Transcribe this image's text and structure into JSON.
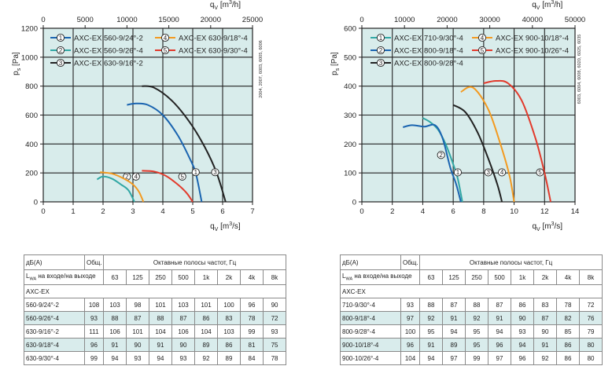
{
  "colors": {
    "plot_bg": "#d8eceb",
    "grid": "#222222",
    "table_alt_row": "#d9ecec",
    "series": {
      "blue": "#1a64b0",
      "teal": "#31a7a4",
      "black": "#222222",
      "orange": "#f39a20",
      "red": "#e23a2c"
    }
  },
  "chart_data": [
    {
      "type": "line",
      "y_axis_label": "p",
      "y_axis_label_sub": "s",
      "y_axis_unit": "[Pa]",
      "x_axis_label": "q",
      "x_axis_label_sub": "V",
      "x_axis_unit": "[m3/s]",
      "x_axis_unit_parts": [
        "[m",
        "3",
        "/s]"
      ],
      "x2_axis_unit_parts": [
        "[m",
        "3",
        "/h]"
      ],
      "xlim": [
        0,
        7
      ],
      "ylim": [
        0,
        1200
      ],
      "x_ticks": [
        "0",
        "1",
        "2",
        "3",
        "4",
        "5",
        "6",
        "7"
      ],
      "y_ticks": [
        "0",
        "200",
        "400",
        "600",
        "800",
        "1000",
        "1200"
      ],
      "x2_ticks": [
        "0",
        "5000",
        "10000",
        "15000",
        "20000",
        "25000"
      ],
      "side_note": "2004, 2007, 6003, 6005, 6006",
      "series": [
        {
          "marker": "1",
          "name": "AXC-EX 560-9/24°-2",
          "color": "blue",
          "x": [
            2.8,
            3.1,
            3.5,
            4.0,
            4.5,
            4.9,
            5.1,
            5.3
          ],
          "y": [
            670,
            680,
            670,
            600,
            460,
            300,
            200,
            0
          ],
          "marker_at": [
            5.1,
            205
          ]
        },
        {
          "marker": "2",
          "name": "AXC-EX 560-9/26°-4",
          "color": "teal",
          "x": [
            1.8,
            2.0,
            2.3,
            2.6,
            2.85,
            3.05
          ],
          "y": [
            155,
            175,
            160,
            120,
            80,
            0
          ],
          "marker_at": [
            2.8,
            175
          ]
        },
        {
          "marker": "3",
          "name": "AXC-EX 630-9/16°-2",
          "color": "black",
          "x": [
            3.3,
            3.7,
            4.3,
            4.9,
            5.4,
            5.8,
            6.1
          ],
          "y": [
            800,
            790,
            700,
            550,
            380,
            200,
            0
          ],
          "marker_at": [
            5.75,
            205
          ]
        },
        {
          "marker": "4",
          "name": "AXC-EX 630-9/18°-4",
          "color": "orange",
          "x": [
            1.9,
            2.3,
            2.7,
            3.0,
            3.2,
            3.35
          ],
          "y": [
            205,
            195,
            160,
            120,
            70,
            0
          ],
          "marker_at": [
            3.1,
            175
          ]
        },
        {
          "marker": "5",
          "name": "AXC-EX 630-9/30°-4",
          "color": "red",
          "x": [
            3.3,
            3.7,
            4.1,
            4.5,
            4.8,
            5.0
          ],
          "y": [
            215,
            210,
            180,
            120,
            60,
            0
          ],
          "marker_at": [
            4.65,
            175
          ]
        }
      ]
    },
    {
      "type": "line",
      "y_axis_label": "p",
      "y_axis_label_sub": "s",
      "y_axis_unit": "[Pa]",
      "x_axis_label": "q",
      "x_axis_label_sub": "V",
      "x_axis_unit": "[m3/s]",
      "x_axis_unit_parts": [
        "[m",
        "3",
        "/s]"
      ],
      "x2_axis_unit_parts": [
        "[m",
        "3",
        "/h]"
      ],
      "xlim": [
        0,
        14
      ],
      "ylim": [
        0,
        600
      ],
      "x_ticks": [
        "0",
        "2",
        "4",
        "6",
        "8",
        "10",
        "12",
        "14"
      ],
      "y_ticks": [
        "0",
        "100",
        "200",
        "300",
        "400",
        "500",
        "600"
      ],
      "x2_ticks": [
        "0",
        "10000",
        "20000",
        "30000",
        "40000",
        "50000"
      ],
      "side_note": "6003, 6004, 6008, 6020, 6025, 6035",
      "series": [
        {
          "marker": "1",
          "name": "AXC-EX 710-9/30°-4",
          "color": "teal",
          "x": [
            4.0,
            4.5,
            5.0,
            5.5,
            6.0,
            6.3,
            6.6
          ],
          "y": [
            290,
            275,
            250,
            200,
            130,
            80,
            0
          ],
          "marker_at": [
            6.3,
            102
          ]
        },
        {
          "marker": "2",
          "name": "AXC-EX 800-9/18°-4",
          "color": "blue",
          "x": [
            2.7,
            3.3,
            4.1,
            4.8,
            5.3,
            5.8,
            6.2,
            6.5
          ],
          "y": [
            258,
            265,
            260,
            265,
            220,
            120,
            60,
            0
          ],
          "marker_at": [
            5.2,
            162
          ]
        },
        {
          "marker": "3",
          "name": "AXC-EX 800-9/28°-4",
          "color": "black",
          "x": [
            6.0,
            6.8,
            7.6,
            8.3,
            8.9,
            9.2
          ],
          "y": [
            335,
            310,
            240,
            150,
            60,
            0
          ],
          "marker_at": [
            8.3,
            102
          ]
        },
        {
          "marker": "4",
          "name": "AXC-EX 900-10/18°-4",
          "color": "orange",
          "x": [
            6.5,
            7.3,
            8.3,
            9.1,
            9.7,
            10.0
          ],
          "y": [
            380,
            395,
            320,
            200,
            90,
            0
          ],
          "marker_at": [
            9.2,
            102
          ]
        },
        {
          "marker": "5",
          "name": "AXC-EX 900-10/26°-4",
          "color": "red",
          "x": [
            8.0,
            8.8,
            9.6,
            10.5,
            11.4,
            12.0,
            12.4
          ],
          "y": [
            410,
            418,
            410,
            350,
            220,
            100,
            0
          ],
          "marker_at": [
            11.7,
            102
          ]
        }
      ]
    }
  ],
  "tables": [
    {
      "header_db": "дБ(А)",
      "header_total": "Общ.",
      "header_bands": "Октавные полосы частот, Гц",
      "lwa_prefix": "L",
      "lwa_sub": "WA",
      "lwa_text": " на входе/на выходе",
      "bands": [
        "63",
        "125",
        "250",
        "500",
        "1k",
        "2k",
        "4k",
        "8k"
      ],
      "group": "AXC-EX",
      "rows": [
        {
          "model": "560-9/24°-2",
          "total": "108",
          "v": [
            "103",
            "98",
            "101",
            "103",
            "101",
            "100",
            "96",
            "90"
          ]
        },
        {
          "model": "560-9/26°-4",
          "total": "93",
          "v": [
            "88",
            "87",
            "88",
            "87",
            "86",
            "83",
            "78",
            "72"
          ]
        },
        {
          "model": "630-9/16°-2",
          "total": "111",
          "v": [
            "106",
            "101",
            "104",
            "106",
            "104",
            "103",
            "99",
            "93"
          ]
        },
        {
          "model": "630-9/18°-4",
          "total": "96",
          "v": [
            "91",
            "90",
            "91",
            "90",
            "89",
            "86",
            "81",
            "75"
          ]
        },
        {
          "model": "630-9/30°-4",
          "total": "99",
          "v": [
            "94",
            "93",
            "94",
            "93",
            "92",
            "89",
            "84",
            "78"
          ]
        }
      ]
    },
    {
      "header_db": "дБ(А)",
      "header_total": "Общ.",
      "header_bands": "Октавные полосы частот, Гц",
      "lwa_prefix": "L",
      "lwa_sub": "WA",
      "lwa_text": " на входе/на выходе",
      "bands": [
        "63",
        "125",
        "250",
        "500",
        "1k",
        "2k",
        "4k",
        "8k"
      ],
      "group": "AXC-EX",
      "rows": [
        {
          "model": "710-9/30°-4",
          "total": "93",
          "v": [
            "88",
            "87",
            "88",
            "87",
            "86",
            "83",
            "78",
            "72"
          ]
        },
        {
          "model": "800-9/18°-4",
          "total": "97",
          "v": [
            "92",
            "91",
            "92",
            "91",
            "90",
            "87",
            "82",
            "76"
          ]
        },
        {
          "model": "800-9/28°-4",
          "total": "100",
          "v": [
            "95",
            "94",
            "95",
            "94",
            "93",
            "90",
            "85",
            "79"
          ]
        },
        {
          "model": "900-10/18°-4",
          "total": "96",
          "v": [
            "91",
            "89",
            "95",
            "96",
            "94",
            "91",
            "86",
            "80"
          ]
        },
        {
          "model": "900-10/26°-4",
          "total": "104",
          "v": [
            "94",
            "97",
            "99",
            "97",
            "96",
            "92",
            "86",
            "80"
          ]
        }
      ]
    }
  ]
}
